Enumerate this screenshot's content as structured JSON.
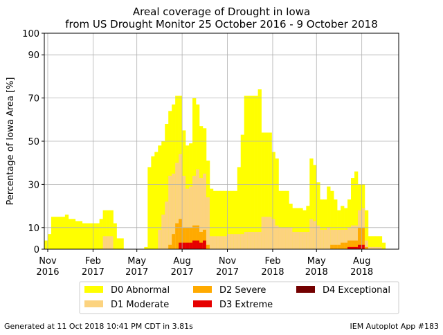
{
  "footer": {
    "generated": "Generated at 11 Oct 2018 10:41 PM CDT in 3.81s",
    "app": "IEM Autoplot App #183"
  },
  "chart_data": {
    "type": "area",
    "title": "Areal coverage of Drought in Iowa",
    "subtitle": "from US Drought Monitor 25 October 2016 - 9 October 2018",
    "xlabel": "",
    "ylabel": "Percentage of Iowa Area [%]",
    "ylim": [
      0,
      100
    ],
    "yticks": [
      0,
      10,
      30,
      50,
      70,
      90,
      100
    ],
    "xlim": [
      "2016-10-25",
      "2018-10-15"
    ],
    "xticks": [
      {
        "date": "2016-11-01",
        "label1": "Nov",
        "label2": "2016"
      },
      {
        "date": "2017-02-01",
        "label1": "Feb",
        "label2": "2017"
      },
      {
        "date": "2017-05-01",
        "label1": "May",
        "label2": "2017"
      },
      {
        "date": "2017-08-01",
        "label1": "Aug",
        "label2": "2017"
      },
      {
        "date": "2017-11-01",
        "label1": "Nov",
        "label2": "2017"
      },
      {
        "date": "2018-02-01",
        "label1": "Feb",
        "label2": "2018"
      },
      {
        "date": "2018-05-01",
        "label1": "May",
        "label2": "2018"
      },
      {
        "date": "2018-08-01",
        "label1": "Aug",
        "label2": "2018"
      }
    ],
    "grid": true,
    "legend_position": "bottom",
    "legend": [
      {
        "name": "D0 Abnormal",
        "color": "#FFFF00"
      },
      {
        "name": "D1 Moderate",
        "color": "#FCD37F"
      },
      {
        "name": "D2 Severe",
        "color": "#FFAA00"
      },
      {
        "name": "D3 Extreme",
        "color": "#E60000"
      },
      {
        "name": "D4 Exceptional",
        "color": "#730000"
      }
    ],
    "weeks": [
      {
        "date": "2016-10-25",
        "d0": 4,
        "d1": 0,
        "d2": 0,
        "d3": 0,
        "d4": 0
      },
      {
        "date": "2016-11-01",
        "d0": 7,
        "d1": 0,
        "d2": 0,
        "d3": 0,
        "d4": 0
      },
      {
        "date": "2016-11-08",
        "d0": 15,
        "d1": 0,
        "d2": 0,
        "d3": 0,
        "d4": 0
      },
      {
        "date": "2016-11-15",
        "d0": 15,
        "d1": 0,
        "d2": 0,
        "d3": 0,
        "d4": 0
      },
      {
        "date": "2016-11-22",
        "d0": 15,
        "d1": 0,
        "d2": 0,
        "d3": 0,
        "d4": 0
      },
      {
        "date": "2016-11-29",
        "d0": 15,
        "d1": 0,
        "d2": 0,
        "d3": 0,
        "d4": 0
      },
      {
        "date": "2016-12-06",
        "d0": 16,
        "d1": 0,
        "d2": 0,
        "d3": 0,
        "d4": 0
      },
      {
        "date": "2016-12-13",
        "d0": 14,
        "d1": 0,
        "d2": 0,
        "d3": 0,
        "d4": 0
      },
      {
        "date": "2016-12-20",
        "d0": 14,
        "d1": 0,
        "d2": 0,
        "d3": 0,
        "d4": 0
      },
      {
        "date": "2016-12-27",
        "d0": 13,
        "d1": 0,
        "d2": 0,
        "d3": 0,
        "d4": 0
      },
      {
        "date": "2017-01-03",
        "d0": 13,
        "d1": 0,
        "d2": 0,
        "d3": 0,
        "d4": 0
      },
      {
        "date": "2017-01-10",
        "d0": 12,
        "d1": 0,
        "d2": 0,
        "d3": 0,
        "d4": 0
      },
      {
        "date": "2017-01-17",
        "d0": 12,
        "d1": 0,
        "d2": 0,
        "d3": 0,
        "d4": 0
      },
      {
        "date": "2017-01-24",
        "d0": 12,
        "d1": 0,
        "d2": 0,
        "d3": 0,
        "d4": 0
      },
      {
        "date": "2017-01-31",
        "d0": 12,
        "d1": 0,
        "d2": 0,
        "d3": 0,
        "d4": 0
      },
      {
        "date": "2017-02-07",
        "d0": 12,
        "d1": 0,
        "d2": 0,
        "d3": 0,
        "d4": 0
      },
      {
        "date": "2017-02-14",
        "d0": 14,
        "d1": 0,
        "d2": 0,
        "d3": 0,
        "d4": 0
      },
      {
        "date": "2017-02-21",
        "d0": 18,
        "d1": 6,
        "d2": 0,
        "d3": 0,
        "d4": 0
      },
      {
        "date": "2017-02-28",
        "d0": 18,
        "d1": 6,
        "d2": 0,
        "d3": 0,
        "d4": 0
      },
      {
        "date": "2017-03-07",
        "d0": 18,
        "d1": 6,
        "d2": 0,
        "d3": 0,
        "d4": 0
      },
      {
        "date": "2017-03-14",
        "d0": 12,
        "d1": 0,
        "d2": 0,
        "d3": 0,
        "d4": 0
      },
      {
        "date": "2017-03-21",
        "d0": 5,
        "d1": 0,
        "d2": 0,
        "d3": 0,
        "d4": 0
      },
      {
        "date": "2017-03-28",
        "d0": 5,
        "d1": 0,
        "d2": 0,
        "d3": 0,
        "d4": 0
      },
      {
        "date": "2017-04-04",
        "d0": 0,
        "d1": 0,
        "d2": 0,
        "d3": 0,
        "d4": 0
      },
      {
        "date": "2017-04-11",
        "d0": 0,
        "d1": 0,
        "d2": 0,
        "d3": 0,
        "d4": 0
      },
      {
        "date": "2017-04-18",
        "d0": 0,
        "d1": 0,
        "d2": 0,
        "d3": 0,
        "d4": 0
      },
      {
        "date": "2017-04-25",
        "d0": 0,
        "d1": 0,
        "d2": 0,
        "d3": 0,
        "d4": 0
      },
      {
        "date": "2017-05-02",
        "d0": 0,
        "d1": 0,
        "d2": 0,
        "d3": 0,
        "d4": 0
      },
      {
        "date": "2017-05-09",
        "d0": 0,
        "d1": 0,
        "d2": 0,
        "d3": 0,
        "d4": 0
      },
      {
        "date": "2017-05-16",
        "d0": 1,
        "d1": 0,
        "d2": 0,
        "d3": 0,
        "d4": 0
      },
      {
        "date": "2017-05-23",
        "d0": 38,
        "d1": 0,
        "d2": 0,
        "d3": 0,
        "d4": 0
      },
      {
        "date": "2017-05-30",
        "d0": 43,
        "d1": 0,
        "d2": 0,
        "d3": 0,
        "d4": 0
      },
      {
        "date": "2017-06-06",
        "d0": 45,
        "d1": 0,
        "d2": 0,
        "d3": 0,
        "d4": 0
      },
      {
        "date": "2017-06-13",
        "d0": 48,
        "d1": 9,
        "d2": 0,
        "d3": 0,
        "d4": 0
      },
      {
        "date": "2017-06-20",
        "d0": 50,
        "d1": 16,
        "d2": 0,
        "d3": 0,
        "d4": 0
      },
      {
        "date": "2017-06-27",
        "d0": 58,
        "d1": 22,
        "d2": 0,
        "d3": 0,
        "d4": 0
      },
      {
        "date": "2017-07-04",
        "d0": 64,
        "d1": 34,
        "d2": 2,
        "d3": 0,
        "d4": 0
      },
      {
        "date": "2017-07-11",
        "d0": 67,
        "d1": 35,
        "d2": 7,
        "d3": 0,
        "d4": 0
      },
      {
        "date": "2017-07-18",
        "d0": 71,
        "d1": 40,
        "d2": 12,
        "d3": 0,
        "d4": 0
      },
      {
        "date": "2017-07-25",
        "d0": 71,
        "d1": 44,
        "d2": 14,
        "d3": 3,
        "d4": 0
      },
      {
        "date": "2017-08-01",
        "d0": 55,
        "d1": 34,
        "d2": 10,
        "d3": 3,
        "d4": 0
      },
      {
        "date": "2017-08-08",
        "d0": 48,
        "d1": 28,
        "d2": 10,
        "d3": 3,
        "d4": 0
      },
      {
        "date": "2017-08-15",
        "d0": 49,
        "d1": 29,
        "d2": 10,
        "d3": 3,
        "d4": 0
      },
      {
        "date": "2017-08-22",
        "d0": 70,
        "d1": 34,
        "d2": 11,
        "d3": 4,
        "d4": 0
      },
      {
        "date": "2017-08-29",
        "d0": 67,
        "d1": 37,
        "d2": 11,
        "d3": 4,
        "d4": 0
      },
      {
        "date": "2017-09-05",
        "d0": 57,
        "d1": 33,
        "d2": 8,
        "d3": 3,
        "d4": 0
      },
      {
        "date": "2017-09-12",
        "d0": 56,
        "d1": 35,
        "d2": 9,
        "d3": 4,
        "d4": 0
      },
      {
        "date": "2017-09-19",
        "d0": 41,
        "d1": 24,
        "d2": 2,
        "d3": 0,
        "d4": 0
      },
      {
        "date": "2017-09-26",
        "d0": 28,
        "d1": 6,
        "d2": 0,
        "d3": 0,
        "d4": 0
      },
      {
        "date": "2017-10-03",
        "d0": 27,
        "d1": 6,
        "d2": 0,
        "d3": 0,
        "d4": 0
      },
      {
        "date": "2017-10-10",
        "d0": 27,
        "d1": 6,
        "d2": 0,
        "d3": 0,
        "d4": 0
      },
      {
        "date": "2017-10-17",
        "d0": 27,
        "d1": 6,
        "d2": 0,
        "d3": 0,
        "d4": 0
      },
      {
        "date": "2017-10-24",
        "d0": 27,
        "d1": 6,
        "d2": 0,
        "d3": 0,
        "d4": 0
      },
      {
        "date": "2017-10-31",
        "d0": 27,
        "d1": 7,
        "d2": 0,
        "d3": 0,
        "d4": 0
      },
      {
        "date": "2017-11-07",
        "d0": 27,
        "d1": 7,
        "d2": 0,
        "d3": 0,
        "d4": 0
      },
      {
        "date": "2017-11-14",
        "d0": 27,
        "d1": 7,
        "d2": 0,
        "d3": 0,
        "d4": 0
      },
      {
        "date": "2017-11-21",
        "d0": 38,
        "d1": 7,
        "d2": 0,
        "d3": 0,
        "d4": 0
      },
      {
        "date": "2017-11-28",
        "d0": 53,
        "d1": 7,
        "d2": 0,
        "d3": 0,
        "d4": 0
      },
      {
        "date": "2017-12-05",
        "d0": 71,
        "d1": 8,
        "d2": 0,
        "d3": 0,
        "d4": 0
      },
      {
        "date": "2017-12-12",
        "d0": 71,
        "d1": 8,
        "d2": 0,
        "d3": 0,
        "d4": 0
      },
      {
        "date": "2017-12-19",
        "d0": 71,
        "d1": 8,
        "d2": 0,
        "d3": 0,
        "d4": 0
      },
      {
        "date": "2017-12-26",
        "d0": 71,
        "d1": 8,
        "d2": 0,
        "d3": 0,
        "d4": 0
      },
      {
        "date": "2018-01-02",
        "d0": 74,
        "d1": 8,
        "d2": 0,
        "d3": 0,
        "d4": 0
      },
      {
        "date": "2018-01-09",
        "d0": 54,
        "d1": 15,
        "d2": 0,
        "d3": 0,
        "d4": 0
      },
      {
        "date": "2018-01-16",
        "d0": 54,
        "d1": 15,
        "d2": 0,
        "d3": 0,
        "d4": 0
      },
      {
        "date": "2018-01-23",
        "d0": 54,
        "d1": 15,
        "d2": 0,
        "d3": 0,
        "d4": 0
      },
      {
        "date": "2018-01-30",
        "d0": 45,
        "d1": 14,
        "d2": 0,
        "d3": 0,
        "d4": 0
      },
      {
        "date": "2018-02-06",
        "d0": 42,
        "d1": 11,
        "d2": 0,
        "d3": 0,
        "d4": 0
      },
      {
        "date": "2018-02-13",
        "d0": 27,
        "d1": 10,
        "d2": 0,
        "d3": 0,
        "d4": 0
      },
      {
        "date": "2018-02-20",
        "d0": 27,
        "d1": 10,
        "d2": 0,
        "d3": 0,
        "d4": 0
      },
      {
        "date": "2018-02-27",
        "d0": 27,
        "d1": 10,
        "d2": 0,
        "d3": 0,
        "d4": 0
      },
      {
        "date": "2018-03-06",
        "d0": 21,
        "d1": 10,
        "d2": 0,
        "d3": 0,
        "d4": 0
      },
      {
        "date": "2018-03-13",
        "d0": 19,
        "d1": 8,
        "d2": 0,
        "d3": 0,
        "d4": 0
      },
      {
        "date": "2018-03-20",
        "d0": 19,
        "d1": 8,
        "d2": 0,
        "d3": 0,
        "d4": 0
      },
      {
        "date": "2018-03-27",
        "d0": 19,
        "d1": 8,
        "d2": 0,
        "d3": 0,
        "d4": 0
      },
      {
        "date": "2018-04-03",
        "d0": 18,
        "d1": 8,
        "d2": 0,
        "d3": 0,
        "d4": 0
      },
      {
        "date": "2018-04-10",
        "d0": 20,
        "d1": 8,
        "d2": 0,
        "d3": 0,
        "d4": 0
      },
      {
        "date": "2018-04-17",
        "d0": 42,
        "d1": 14,
        "d2": 0,
        "d3": 0,
        "d4": 0
      },
      {
        "date": "2018-04-24",
        "d0": 39,
        "d1": 13,
        "d2": 0,
        "d3": 0,
        "d4": 0
      },
      {
        "date": "2018-05-01",
        "d0": 31,
        "d1": 11,
        "d2": 0,
        "d3": 0,
        "d4": 0
      },
      {
        "date": "2018-05-08",
        "d0": 23,
        "d1": 9,
        "d2": 0,
        "d3": 0,
        "d4": 0
      },
      {
        "date": "2018-05-15",
        "d0": 23,
        "d1": 9,
        "d2": 0,
        "d3": 0,
        "d4": 0
      },
      {
        "date": "2018-05-22",
        "d0": 29,
        "d1": 10,
        "d2": 0,
        "d3": 0,
        "d4": 0
      },
      {
        "date": "2018-05-29",
        "d0": 27,
        "d1": 9,
        "d2": 2,
        "d3": 0,
        "d4": 0
      },
      {
        "date": "2018-06-05",
        "d0": 23,
        "d1": 9,
        "d2": 2,
        "d3": 0,
        "d4": 0
      },
      {
        "date": "2018-06-12",
        "d0": 18,
        "d1": 9,
        "d2": 2,
        "d3": 0,
        "d4": 0
      },
      {
        "date": "2018-06-19",
        "d0": 20,
        "d1": 9,
        "d2": 3,
        "d3": 0,
        "d4": 0
      },
      {
        "date": "2018-06-26",
        "d0": 19,
        "d1": 9,
        "d2": 3,
        "d3": 0,
        "d4": 0
      },
      {
        "date": "2018-07-03",
        "d0": 23,
        "d1": 10,
        "d2": 4,
        "d3": 1,
        "d4": 0
      },
      {
        "date": "2018-07-10",
        "d0": 33,
        "d1": 11,
        "d2": 4,
        "d3": 1,
        "d4": 0
      },
      {
        "date": "2018-07-17",
        "d0": 36,
        "d1": 11,
        "d2": 4,
        "d3": 1,
        "d4": 0
      },
      {
        "date": "2018-07-24",
        "d0": 30,
        "d1": 18,
        "d2": 10,
        "d3": 2,
        "d4": 0
      },
      {
        "date": "2018-07-31",
        "d0": 30,
        "d1": 19,
        "d2": 10,
        "d3": 2,
        "d4": 0
      },
      {
        "date": "2018-08-07",
        "d0": 18,
        "d1": 4,
        "d2": 1,
        "d3": 0,
        "d4": 0
      },
      {
        "date": "2018-08-14",
        "d0": 6,
        "d1": 1,
        "d2": 0,
        "d3": 0,
        "d4": 0
      },
      {
        "date": "2018-08-21",
        "d0": 6,
        "d1": 1,
        "d2": 0,
        "d3": 0,
        "d4": 0
      },
      {
        "date": "2018-08-28",
        "d0": 6,
        "d1": 1,
        "d2": 0,
        "d3": 0,
        "d4": 0
      },
      {
        "date": "2018-09-04",
        "d0": 6,
        "d1": 1,
        "d2": 0,
        "d3": 0,
        "d4": 0
      },
      {
        "date": "2018-09-11",
        "d0": 3,
        "d1": 0,
        "d2": 0,
        "d3": 0,
        "d4": 0
      }
    ]
  }
}
